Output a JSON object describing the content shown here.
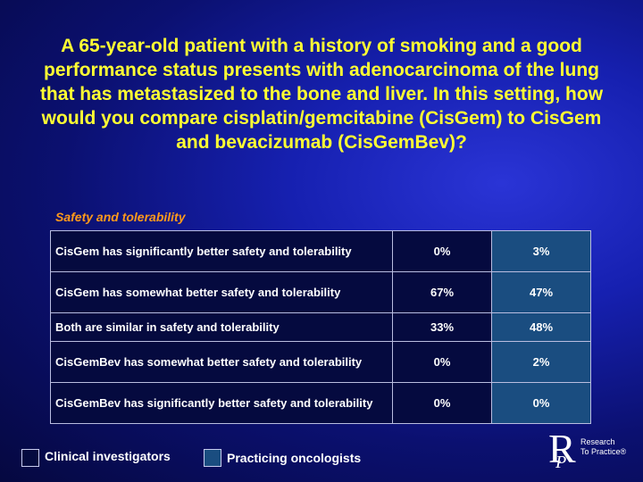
{
  "question": "A 65-year-old patient with a history of smoking and a good performance status presents with adenocarcinoma of the lung that has metastasized to the bone and liver. In this setting, how would you compare cisplatin/gemcitabine (CisGem) to CisGem and bevacizumab (CisGemBev)?",
  "section_title": "Safety and tolerability",
  "rows": [
    {
      "label": "CisGem has significantly better safety and tolerability",
      "clinical": "0%",
      "practicing": "3%"
    },
    {
      "label": "CisGem has somewhat better safety and tolerability",
      "clinical": "67%",
      "practicing": "47%"
    },
    {
      "label": "Both are similar in safety and tolerability",
      "clinical": "33%",
      "practicing": "48%"
    },
    {
      "label": "CisGemBev has somewhat better safety and tolerability",
      "clinical": "0%",
      "practicing": "2%"
    },
    {
      "label": "CisGemBev has significantly better safety and tolerability",
      "clinical": "0%",
      "practicing": "0%"
    }
  ],
  "legend": {
    "clinical": {
      "label": "Clinical investigators",
      "color": "#050a3f"
    },
    "practicing": {
      "label": "Practicing oncologists",
      "color": "#1a4d80"
    }
  },
  "logo": {
    "letter": "R",
    "sub_letter": "P",
    "line1": "Research",
    "line2": "To Practice®"
  }
}
